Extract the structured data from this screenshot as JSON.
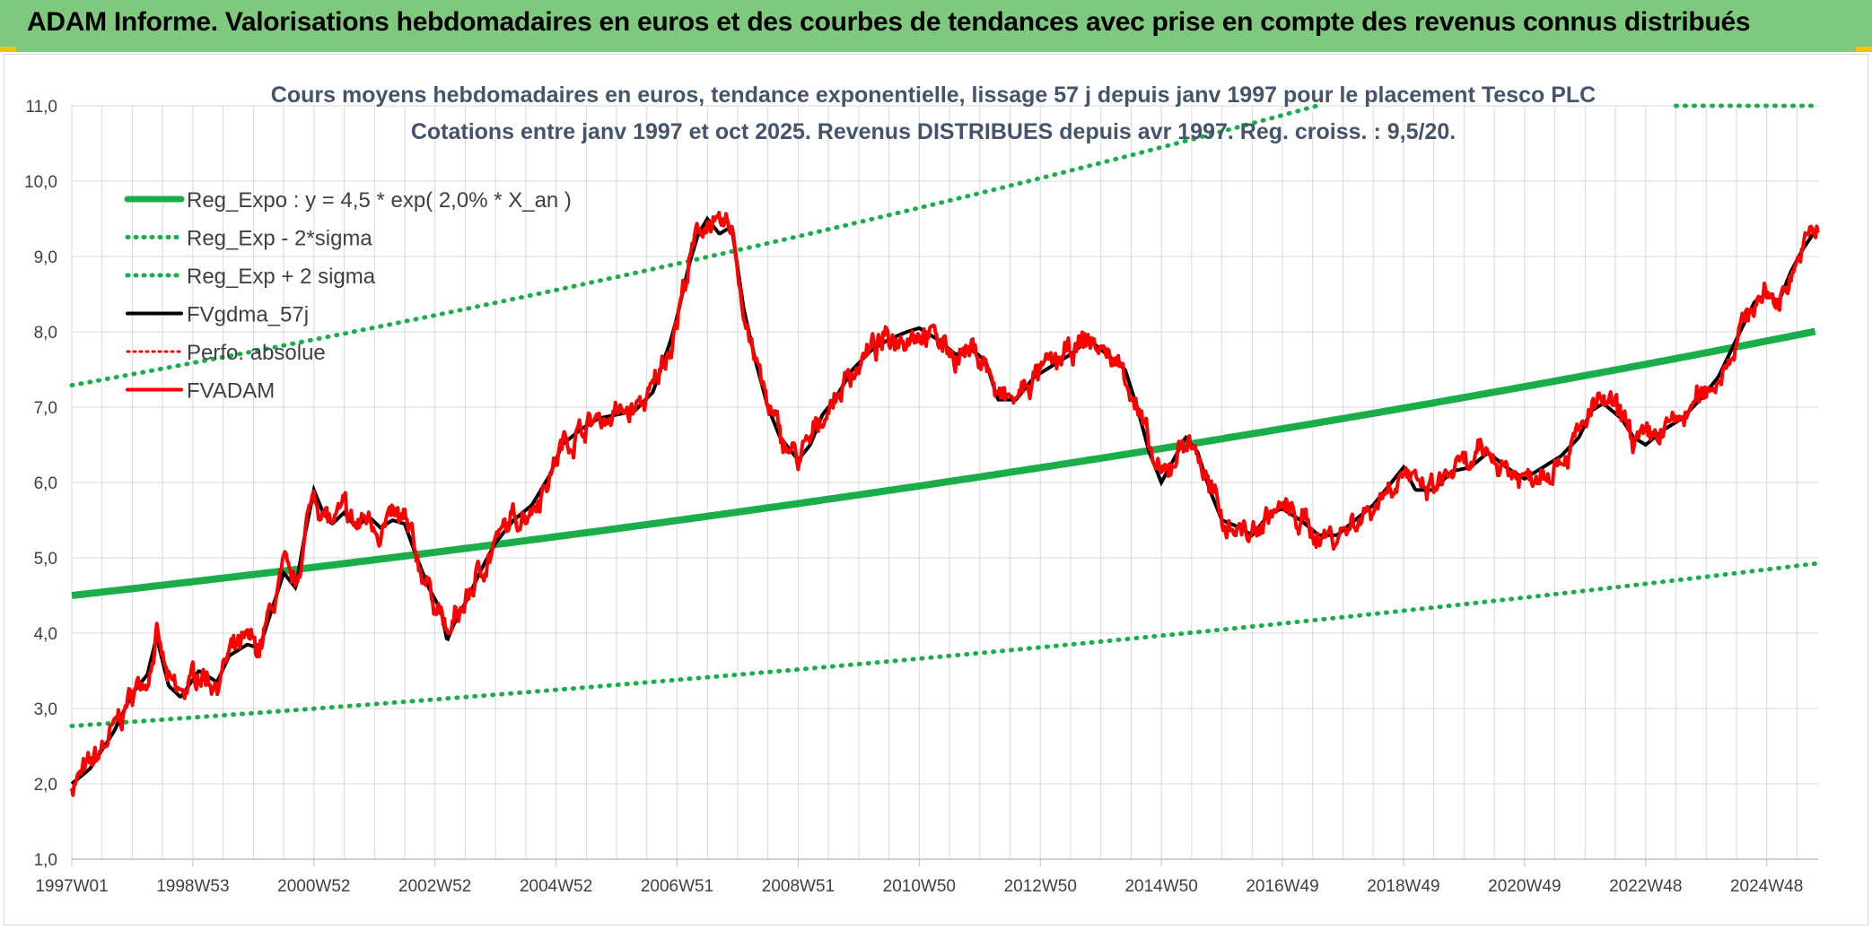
{
  "header": {
    "title": "ADAM Informe. Valorisations hebdomadaires en euros et des courbes de tendances avec prise en compte des revenus connus distribués"
  },
  "colors": {
    "header_bg": "#7ec97e",
    "reg_green": "#1aae4b",
    "fv_red": "#ff0000",
    "fv_black": "#000000",
    "grid": "#d9d9d9"
  },
  "chart_data": {
    "type": "line",
    "title_line1": "Cours moyens hebdomadaires en euros, tendance exponentielle, lissage 57 j depuis janv 1997 pour le placement Tesco PLC",
    "title_line2": "Cotations entre janv 1997 et oct 2025. Revenus DISTRIBUES depuis avr 1997. Reg. croiss. : 9,5/20.",
    "ylim": [
      1.0,
      11.0
    ],
    "xlim": [
      1997.0,
      2025.85
    ],
    "y_ticks": [
      "1,0",
      "2,0",
      "3,0",
      "4,0",
      "5,0",
      "6,0",
      "7,0",
      "8,0",
      "9,0",
      "10,0",
      "11,0"
    ],
    "x_ticks": [
      {
        "label": "1997W01",
        "x": 1997.0
      },
      {
        "label": "1998W53",
        "x": 1999.0
      },
      {
        "label": "2000W52",
        "x": 2001.0
      },
      {
        "label": "2002W52",
        "x": 2003.0
      },
      {
        "label": "2004W52",
        "x": 2005.0
      },
      {
        "label": "2006W51",
        "x": 2007.0
      },
      {
        "label": "2008W51",
        "x": 2009.0
      },
      {
        "label": "2010W50",
        "x": 2011.0
      },
      {
        "label": "2012W50",
        "x": 2013.0
      },
      {
        "label": "2014W50",
        "x": 2015.0
      },
      {
        "label": "2016W49",
        "x": 2017.0
      },
      {
        "label": "2018W49",
        "x": 2019.0
      },
      {
        "label": "2020W49",
        "x": 2021.0
      },
      {
        "label": "2022W48",
        "x": 2023.0
      },
      {
        "label": "2024W48",
        "x": 2025.0
      }
    ],
    "legend": [
      {
        "label": "Reg_Expo : y = 4,5 * exp( 2,0% *  X_an )",
        "style": "solid-green"
      },
      {
        "label": "Reg_Exp - 2*sigma",
        "style": "dotted-green"
      },
      {
        "label": "Reg_Exp + 2 sigma",
        "style": "dotted-green"
      },
      {
        "label": "FVgdma_57j",
        "style": "solid-black"
      },
      {
        "label": "Perfo. absolue",
        "style": "dotted-red"
      },
      {
        "label": "FVADAM",
        "style": "solid-red"
      }
    ],
    "regression": {
      "a": 4.5,
      "rate": 0.02,
      "lower_factor": 0.615,
      "upper_factor": 1.62
    },
    "series_fv_points": [
      [
        1997.0,
        2.0
      ],
      [
        1997.3,
        2.2
      ],
      [
        1997.7,
        2.7
      ],
      [
        1998.0,
        3.2
      ],
      [
        1998.25,
        3.45
      ],
      [
        1998.4,
        3.95
      ],
      [
        1998.6,
        3.3
      ],
      [
        1998.8,
        3.15
      ],
      [
        1999.1,
        3.5
      ],
      [
        1999.4,
        3.35
      ],
      [
        1999.6,
        3.7
      ],
      [
        1999.9,
        3.85
      ],
      [
        2000.1,
        3.8
      ],
      [
        2000.3,
        4.3
      ],
      [
        2000.5,
        4.8
      ],
      [
        2000.7,
        4.6
      ],
      [
        2000.85,
        5.3
      ],
      [
        2001.0,
        5.9
      ],
      [
        2001.15,
        5.6
      ],
      [
        2001.3,
        5.45
      ],
      [
        2001.5,
        5.6
      ],
      [
        2001.7,
        5.4
      ],
      [
        2001.9,
        5.55
      ],
      [
        2002.1,
        5.4
      ],
      [
        2002.3,
        5.5
      ],
      [
        2002.5,
        5.45
      ],
      [
        2002.7,
        5.0
      ],
      [
        2002.9,
        4.6
      ],
      [
        2003.1,
        4.3
      ],
      [
        2003.2,
        3.9
      ],
      [
        2003.3,
        4.1
      ],
      [
        2003.5,
        4.4
      ],
      [
        2003.8,
        4.9
      ],
      [
        2004.0,
        5.2
      ],
      [
        2004.3,
        5.5
      ],
      [
        2004.6,
        5.7
      ],
      [
        2004.9,
        6.1
      ],
      [
        2005.1,
        6.5
      ],
      [
        2005.4,
        6.7
      ],
      [
        2005.7,
        6.85
      ],
      [
        2006.0,
        6.9
      ],
      [
        2006.3,
        6.95
      ],
      [
        2006.6,
        7.2
      ],
      [
        2006.9,
        7.9
      ],
      [
        2007.0,
        8.2
      ],
      [
        2007.2,
        8.9
      ],
      [
        2007.35,
        9.3
      ],
      [
        2007.5,
        9.5
      ],
      [
        2007.7,
        9.3
      ],
      [
        2007.9,
        9.4
      ],
      [
        2008.1,
        8.3
      ],
      [
        2008.3,
        7.6
      ],
      [
        2008.5,
        7.0
      ],
      [
        2008.7,
        6.6
      ],
      [
        2009.0,
        6.3
      ],
      [
        2009.2,
        6.5
      ],
      [
        2009.4,
        6.9
      ],
      [
        2009.6,
        7.1
      ],
      [
        2009.9,
        7.5
      ],
      [
        2010.2,
        7.75
      ],
      [
        2010.5,
        7.9
      ],
      [
        2010.8,
        8.0
      ],
      [
        2011.0,
        8.05
      ],
      [
        2011.3,
        7.9
      ],
      [
        2011.6,
        7.7
      ],
      [
        2011.9,
        7.75
      ],
      [
        2012.1,
        7.6
      ],
      [
        2012.3,
        7.1
      ],
      [
        2012.6,
        7.1
      ],
      [
        2012.9,
        7.4
      ],
      [
        2013.2,
        7.55
      ],
      [
        2013.5,
        7.7
      ],
      [
        2013.8,
        7.9
      ],
      [
        2014.1,
        7.7
      ],
      [
        2014.4,
        7.5
      ],
      [
        2014.6,
        7.0
      ],
      [
        2014.8,
        6.4
      ],
      [
        2015.0,
        6.0
      ],
      [
        2015.2,
        6.3
      ],
      [
        2015.4,
        6.6
      ],
      [
        2015.6,
        6.4
      ],
      [
        2015.8,
        5.9
      ],
      [
        2016.0,
        5.5
      ],
      [
        2016.3,
        5.4
      ],
      [
        2016.5,
        5.3
      ],
      [
        2016.8,
        5.6
      ],
      [
        2017.0,
        5.65
      ],
      [
        2017.3,
        5.5
      ],
      [
        2017.6,
        5.3
      ],
      [
        2017.9,
        5.3
      ],
      [
        2018.2,
        5.5
      ],
      [
        2018.5,
        5.7
      ],
      [
        2018.8,
        6.0
      ],
      [
        2019.0,
        6.2
      ],
      [
        2019.2,
        5.9
      ],
      [
        2019.5,
        5.9
      ],
      [
        2019.8,
        6.15
      ],
      [
        2020.1,
        6.2
      ],
      [
        2020.4,
        6.4
      ],
      [
        2020.7,
        6.2
      ],
      [
        2021.0,
        6.05
      ],
      [
        2021.3,
        6.2
      ],
      [
        2021.6,
        6.35
      ],
      [
        2021.9,
        6.6
      ],
      [
        2022.1,
        6.95
      ],
      [
        2022.3,
        7.05
      ],
      [
        2022.6,
        6.85
      ],
      [
        2022.8,
        6.6
      ],
      [
        2023.0,
        6.5
      ],
      [
        2023.3,
        6.7
      ],
      [
        2023.6,
        6.85
      ],
      [
        2023.9,
        7.1
      ],
      [
        2024.2,
        7.4
      ],
      [
        2024.5,
        7.9
      ],
      [
        2024.8,
        8.4
      ],
      [
        2025.0,
        8.5
      ],
      [
        2025.2,
        8.4
      ],
      [
        2025.4,
        8.8
      ],
      [
        2025.6,
        9.1
      ],
      [
        2025.85,
        9.4
      ]
    ]
  }
}
